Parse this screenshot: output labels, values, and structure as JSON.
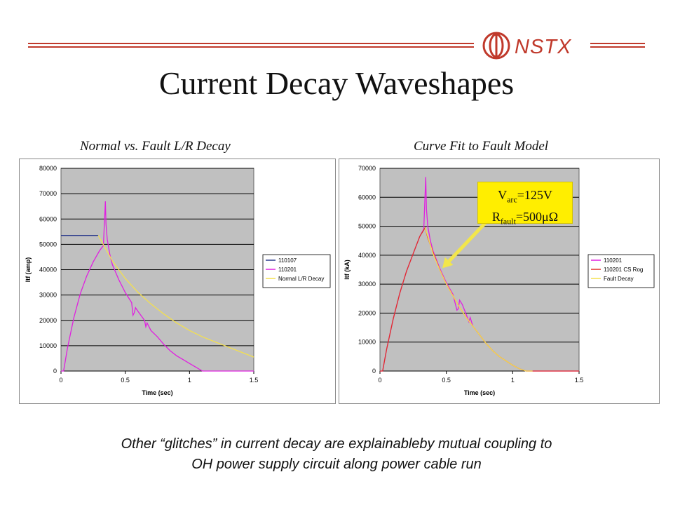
{
  "logo": {
    "text": "NSTX"
  },
  "title": "Current Decay Waveshapes",
  "chart_data": [
    {
      "type": "line",
      "title": "Normal vs. Fault L/R Decay",
      "xlabel": "Time (sec)",
      "ylabel": "Itf (amp)",
      "xlim": [
        0,
        1.5
      ],
      "ylim": [
        0,
        80000
      ],
      "xticks": [
        "0",
        "0.5",
        "1",
        "1.5"
      ],
      "yticks": [
        "0",
        "10000",
        "20000",
        "30000",
        "40000",
        "50000",
        "60000",
        "70000",
        "80000"
      ],
      "grid": true,
      "legend_position": "right",
      "series": [
        {
          "name": "110107",
          "color": "#2b3a8c",
          "x": [
            0,
            0.05,
            0.1,
            0.15,
            0.2,
            0.25,
            0.29
          ],
          "y": [
            53500,
            53500,
            53500,
            53500,
            53500,
            53500,
            53500
          ]
        },
        {
          "name": "110201",
          "color": "#e020e0",
          "x": [
            0,
            0.02,
            0.05,
            0.1,
            0.15,
            0.2,
            0.25,
            0.3,
            0.33,
            0.345,
            0.35,
            0.36,
            0.38,
            0.4,
            0.45,
            0.5,
            0.55,
            0.56,
            0.57,
            0.58,
            0.6,
            0.65,
            0.66,
            0.67,
            0.7,
            0.75,
            0.8,
            0.85,
            0.9,
            0.95,
            1.0,
            1.05,
            1.1,
            1.2,
            1.3,
            1.4,
            1.5
          ],
          "y": [
            0,
            0,
            9000,
            21000,
            30500,
            37500,
            43000,
            47500,
            49500,
            67000,
            58000,
            52000,
            46000,
            42000,
            36000,
            31000,
            27000,
            22000,
            23000,
            25000,
            23500,
            20000,
            17500,
            19000,
            16000,
            13500,
            10500,
            8000,
            6000,
            4500,
            3000,
            1500,
            0,
            0,
            0,
            0,
            0
          ]
        },
        {
          "name": "Normal L/R Decay",
          "color": "#f4e04d",
          "x": [
            0.29,
            0.35,
            0.4,
            0.5,
            0.6,
            0.7,
            0.8,
            0.9,
            1.0,
            1.1,
            1.2,
            1.3,
            1.4,
            1.5
          ],
          "y": [
            53500,
            48000,
            43500,
            36500,
            31000,
            26500,
            22500,
            19000,
            16000,
            13500,
            11500,
            9500,
            7500,
            5500
          ]
        }
      ]
    },
    {
      "type": "line",
      "title": "Curve Fit to Fault Model",
      "xlabel": "Time (sec)",
      "ylabel": "Itf (kA)",
      "xlim": [
        0,
        1.5
      ],
      "ylim": [
        0,
        70000
      ],
      "xticks": [
        "0",
        "0.5",
        "1",
        "1.5"
      ],
      "yticks": [
        "0",
        "10000",
        "20000",
        "30000",
        "40000",
        "50000",
        "60000",
        "70000"
      ],
      "grid": true,
      "legend_position": "right",
      "series": [
        {
          "name": "110201",
          "color": "#e020e0",
          "x": [
            0,
            0.02,
            0.05,
            0.1,
            0.15,
            0.2,
            0.25,
            0.3,
            0.33,
            0.345,
            0.35,
            0.36,
            0.38,
            0.4,
            0.45,
            0.5,
            0.55,
            0.58,
            0.59,
            0.6,
            0.62,
            0.65,
            0.67,
            0.68,
            0.7,
            0.75,
            0.8,
            0.85,
            0.9,
            0.95,
            1.0,
            1.05,
            1.1,
            1.2,
            1.3,
            1.4,
            1.5
          ],
          "y": [
            0,
            0,
            7500,
            18000,
            27000,
            34500,
            40500,
            46500,
            49000,
            67000,
            56000,
            50000,
            45000,
            41500,
            35500,
            30500,
            26500,
            21000,
            21500,
            24500,
            23000,
            19500,
            17000,
            18500,
            15500,
            12500,
            9500,
            7000,
            5000,
            3500,
            2000,
            800,
            0,
            0,
            0,
            0,
            0
          ]
        },
        {
          "name": "110201 CS Rog",
          "color": "#e0302a",
          "x": [
            0,
            0.02,
            0.05,
            0.1,
            0.15,
            0.2,
            0.25,
            0.3,
            0.34,
            0.36,
            0.4,
            0.45,
            0.5,
            0.55,
            0.6,
            0.65,
            0.7,
            0.75,
            0.8,
            0.85,
            0.9,
            0.95,
            1.0,
            1.05,
            1.1,
            1.2,
            1.3,
            1.4,
            1.5
          ],
          "y": [
            0,
            0,
            7500,
            18000,
            27000,
            34500,
            40500,
            46500,
            49500,
            46000,
            41000,
            35000,
            30000,
            26000,
            22000,
            18500,
            15500,
            12500,
            9500,
            7000,
            5000,
            3500,
            2000,
            800,
            0,
            0,
            0,
            0,
            0
          ]
        },
        {
          "name": "Fault Decay",
          "color": "#f4e04d",
          "x": [
            0.34,
            0.4,
            0.45,
            0.5,
            0.55,
            0.6,
            0.65,
            0.7,
            0.75,
            0.8,
            0.85,
            0.9,
            0.95,
            1.0,
            1.05,
            1.1,
            1.15
          ],
          "y": [
            49500,
            40500,
            35000,
            30000,
            26000,
            22000,
            18500,
            15500,
            12500,
            9500,
            7000,
            5000,
            3500,
            2000,
            800,
            0,
            0
          ]
        }
      ]
    }
  ],
  "callout": {
    "line1_main": "V",
    "line1_sub": "arc",
    "line1_rest": "=125V",
    "line2_main": "R",
    "line2_sub": "fault",
    "line2_rest": "=500μΩ",
    "arrow_target": {
      "x": 0.47,
      "y": 35500
    }
  },
  "caption": {
    "line1": "Other “glitches” in current decay are explainableby mutual coupling to",
    "line2": "OH power supply circuit along power cable run"
  },
  "colors": {
    "rule": "#c0392b",
    "plot_bg": "#c0c0c0",
    "callout_bg": "#ffee00",
    "arrow": "#f2e64b"
  }
}
